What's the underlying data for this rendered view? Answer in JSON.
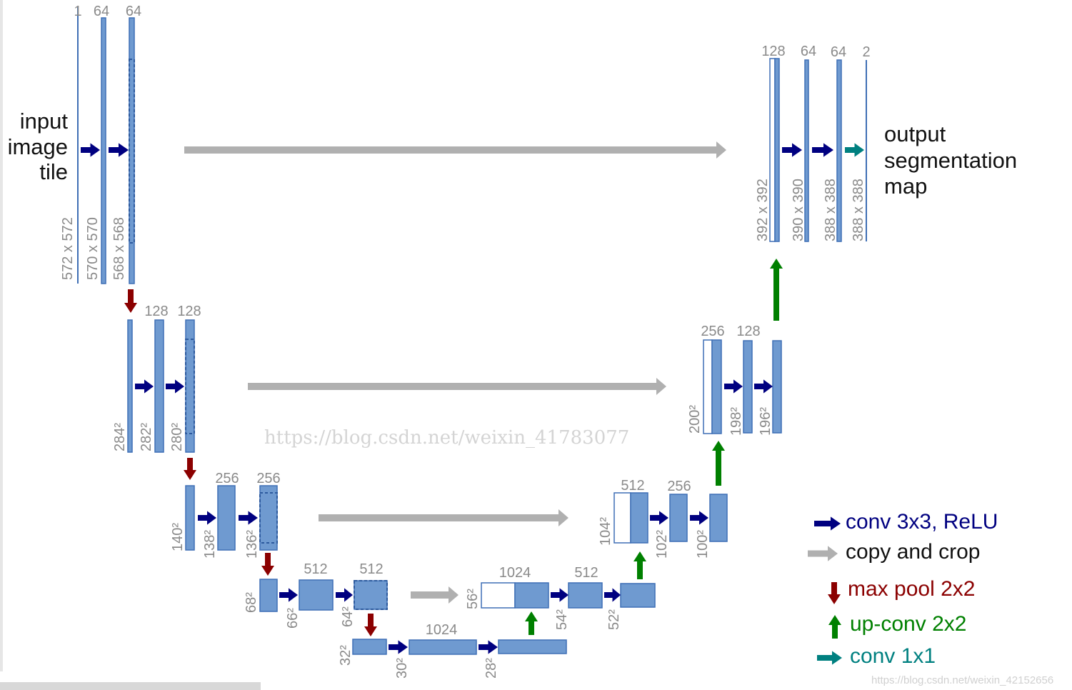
{
  "input_label": [
    "input",
    "image",
    "tile"
  ],
  "output_label": [
    "output",
    "segmentation",
    "map"
  ],
  "channels": {
    "l1_in": "1",
    "l1_a": "64",
    "l1_b": "64",
    "l2_a": "128",
    "l2_b": "128",
    "l3_a": "256",
    "l3_b": "256",
    "l4_a": "512",
    "l4_b": "512",
    "l5_a": "1024",
    "r4_a": "1024",
    "r4_b": "512",
    "r3_a": "512",
    "r3_b": "256",
    "r2_a": "256",
    "r2_b": "128",
    "r1_a": "128",
    "r1_b": "64",
    "r1_c": "64",
    "r1_d": "2"
  },
  "sizes": {
    "l1_in": "572 x 572",
    "l1_a": "570 x 570",
    "l1_b": "568 x 568",
    "l2_in": "284²",
    "l2_a": "282²",
    "l2_b": "280²",
    "l3_in": "140²",
    "l3_a": "138²",
    "l3_b": "136²",
    "l4_in": "68²",
    "l4_a": "66²",
    "l4_b": "64²",
    "l5_in": "32²",
    "l5_a": "30²",
    "l5_b": "28²",
    "r4_a": "56²",
    "r4_b": "54²",
    "r4_c": "52²",
    "r3_a": "104²",
    "r3_b": "102²",
    "r3_c": "100²",
    "r2_a": "200²",
    "r2_b": "198²",
    "r2_c": "196²",
    "r1_a": "392 x 392",
    "r1_b": "390 x 390",
    "r1_c": "388 x 388",
    "r1_d": "388 x 388"
  },
  "legend": [
    {
      "label": "conv 3x3, ReLU",
      "icon": "arrow-right-icon",
      "color": "#000080"
    },
    {
      "label": "copy and crop",
      "icon": "arrow-right-icon",
      "color": "#b0b0b0"
    },
    {
      "label": "max pool 2x2",
      "icon": "arrow-down-icon",
      "color": "#8b0000"
    },
    {
      "label": "up-conv 2x2",
      "icon": "arrow-up-icon",
      "color": "#008000"
    },
    {
      "label": "conv 1x1",
      "icon": "arrow-right-icon",
      "color": "#008080"
    }
  ],
  "watermarks": {
    "main": "https://blog.csdn.net/weixin_41783077",
    "small": "https://blog.csdn.net/weixin_42152656"
  },
  "colors": {
    "block_fill": "#6f9ad0",
    "block_stroke": "#3f6fb5",
    "label_gray": "#8a8a8a"
  }
}
